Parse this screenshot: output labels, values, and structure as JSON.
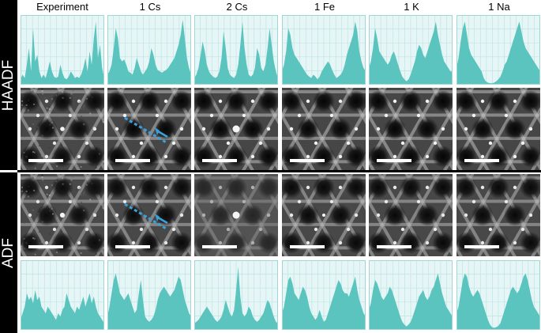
{
  "columns": [
    "Experiment",
    "1 Cs",
    "2 Cs",
    "1 Fe",
    "1 K",
    "1 Na"
  ],
  "row_labels": {
    "top": "HAADF",
    "bottom": "ADF"
  },
  "colors": {
    "profile_fill": "#5bc4be",
    "profile_bg": "#e6f6f6",
    "grid": "#bfe4e4",
    "arrow": "#3aa0dc",
    "scalebar": "#ffffff",
    "image_bg": "#3a3a3a"
  },
  "haadf_profiles": [
    [
      0.08,
      0.15,
      0.1,
      0.3,
      0.55,
      0.2,
      0.85,
      0.35,
      0.45,
      0.2,
      0.1,
      0.15,
      0.1,
      0.22,
      0.35,
      0.2,
      0.12,
      0.1,
      0.12,
      0.3,
      0.18,
      0.1,
      0.08,
      0.12,
      0.2,
      0.15,
      0.1,
      0.12,
      0.1,
      0.15,
      0.25,
      0.4,
      0.2,
      0.5,
      0.3,
      0.7,
      0.95,
      0.4,
      0.6,
      0.25,
      0.1
    ],
    [
      0.15,
      0.2,
      0.3,
      0.55,
      0.85,
      0.7,
      0.4,
      0.35,
      0.38,
      0.3,
      0.2,
      0.18,
      0.15,
      0.25,
      0.4,
      0.3,
      0.2,
      0.15,
      0.2,
      0.25,
      0.35,
      0.55,
      0.45,
      0.3,
      0.22,
      0.2,
      0.18,
      0.2,
      0.22,
      0.25,
      0.3,
      0.35,
      0.4,
      0.5,
      0.6,
      0.75,
      0.98,
      0.7,
      0.4,
      0.25,
      0.15
    ],
    [
      0.1,
      0.15,
      0.25,
      0.45,
      0.65,
      0.5,
      0.3,
      0.2,
      0.15,
      0.12,
      0.1,
      0.12,
      0.2,
      0.4,
      0.8,
      0.55,
      0.25,
      0.15,
      0.12,
      0.1,
      0.15,
      0.3,
      0.6,
      0.95,
      0.55,
      0.3,
      0.15,
      0.12,
      0.15,
      0.25,
      0.55,
      0.45,
      0.25,
      0.2,
      0.3,
      0.55,
      0.85,
      0.6,
      0.35,
      0.2,
      0.1
    ],
    [
      0.2,
      0.3,
      0.5,
      0.85,
      0.75,
      0.55,
      0.45,
      0.4,
      0.35,
      0.3,
      0.25,
      0.2,
      0.15,
      0.12,
      0.1,
      0.15,
      0.12,
      0.08,
      0.12,
      0.2,
      0.25,
      0.3,
      0.35,
      0.3,
      0.22,
      0.15,
      0.1,
      0.12,
      0.15,
      0.2,
      0.3,
      0.45,
      0.55,
      0.65,
      0.75,
      0.95,
      0.8,
      0.5,
      0.35,
      0.25,
      0.2
    ],
    [
      0.25,
      0.35,
      0.55,
      0.85,
      0.7,
      0.5,
      0.45,
      0.4,
      0.35,
      0.3,
      0.35,
      0.45,
      0.5,
      0.4,
      0.3,
      0.2,
      0.12,
      0.08,
      0.05,
      0.08,
      0.15,
      0.25,
      0.35,
      0.5,
      0.6,
      0.55,
      0.45,
      0.4,
      0.5,
      0.6,
      0.7,
      0.8,
      0.95,
      0.75,
      0.6,
      0.45,
      0.35,
      0.3,
      0.25,
      0.2,
      0.2
    ],
    [
      0.25,
      0.4,
      0.65,
      0.85,
      0.95,
      0.75,
      0.55,
      0.45,
      0.4,
      0.35,
      0.3,
      0.25,
      0.2,
      0.1,
      0.05,
      0.03,
      0.02,
      0.02,
      0.03,
      0.05,
      0.08,
      0.12,
      0.2,
      0.3,
      0.35,
      0.45,
      0.55,
      0.65,
      0.75,
      0.85,
      0.95,
      0.8,
      0.65,
      0.55,
      0.5,
      0.45,
      0.4,
      0.35,
      0.3,
      0.25,
      0.2
    ]
  ],
  "adf_profiles": [
    [
      0.15,
      0.25,
      0.35,
      0.55,
      0.45,
      0.5,
      0.4,
      0.6,
      0.45,
      0.5,
      0.35,
      0.3,
      0.25,
      0.35,
      0.3,
      0.25,
      0.2,
      0.15,
      0.25,
      0.2,
      0.3,
      0.35,
      0.55,
      0.45,
      0.35,
      0.3,
      0.25,
      0.35,
      0.3,
      0.4,
      0.5,
      0.35,
      0.45,
      0.55,
      0.4,
      0.5,
      0.35,
      0.25,
      0.2,
      0.15,
      0.1
    ],
    [
      0.2,
      0.35,
      0.55,
      0.75,
      0.85,
      0.7,
      0.55,
      0.5,
      0.45,
      0.5,
      0.55,
      0.45,
      0.35,
      0.25,
      0.3,
      0.55,
      0.75,
      0.45,
      0.2,
      0.15,
      0.12,
      0.15,
      0.2,
      0.3,
      0.45,
      0.55,
      0.6,
      0.65,
      0.6,
      0.55,
      0.5,
      0.55,
      0.6,
      0.7,
      0.8,
      0.75,
      0.6,
      0.45,
      0.35,
      0.25,
      0.2
    ],
    [
      0.1,
      0.12,
      0.15,
      0.2,
      0.25,
      0.3,
      0.35,
      0.3,
      0.25,
      0.2,
      0.15,
      0.12,
      0.15,
      0.2,
      0.3,
      0.45,
      0.35,
      0.25,
      0.2,
      0.3,
      0.6,
      0.95,
      0.5,
      0.25,
      0.2,
      0.25,
      0.35,
      0.3,
      0.2,
      0.15,
      0.12,
      0.15,
      0.2,
      0.25,
      0.35,
      0.45,
      0.4,
      0.3,
      0.2,
      0.12,
      0.1
    ],
    [
      0.25,
      0.35,
      0.55,
      0.75,
      0.8,
      0.7,
      0.55,
      0.5,
      0.45,
      0.55,
      0.65,
      0.6,
      0.5,
      0.35,
      0.25,
      0.2,
      0.15,
      0.2,
      0.3,
      0.2,
      0.12,
      0.15,
      0.25,
      0.35,
      0.45,
      0.55,
      0.65,
      0.75,
      0.7,
      0.6,
      0.55,
      0.55,
      0.5,
      0.6,
      0.7,
      0.8,
      0.6,
      0.45,
      0.35,
      0.25,
      0.2
    ],
    [
      0.3,
      0.4,
      0.6,
      0.75,
      0.7,
      0.6,
      0.5,
      0.45,
      0.5,
      0.55,
      0.65,
      0.6,
      0.5,
      0.4,
      0.3,
      0.2,
      0.12,
      0.08,
      0.05,
      0.08,
      0.12,
      0.2,
      0.3,
      0.4,
      0.5,
      0.55,
      0.6,
      0.5,
      0.45,
      0.5,
      0.6,
      0.65,
      0.75,
      0.85,
      0.7,
      0.55,
      0.45,
      0.35,
      0.3,
      0.25,
      0.2
    ],
    [
      0.25,
      0.35,
      0.55,
      0.75,
      0.85,
      0.8,
      0.65,
      0.55,
      0.5,
      0.55,
      0.6,
      0.55,
      0.45,
      0.35,
      0.25,
      0.15,
      0.08,
      0.04,
      0.03,
      0.04,
      0.06,
      0.1,
      0.2,
      0.3,
      0.4,
      0.5,
      0.6,
      0.65,
      0.6,
      0.55,
      0.6,
      0.7,
      0.8,
      0.85,
      0.75,
      0.6,
      0.45,
      0.35,
      0.3,
      0.25,
      0.2
    ]
  ],
  "haadf_images": [
    {
      "contrast": 0.9,
      "center_spot": 0.5,
      "noise": 0.5,
      "arrow": false
    },
    {
      "contrast": 1.0,
      "center_spot": 0.0,
      "noise": 0.0,
      "arrow": true
    },
    {
      "contrast": 1.0,
      "center_spot": 1.0,
      "noise": 0.0,
      "arrow": false
    },
    {
      "contrast": 1.0,
      "center_spot": 0.0,
      "noise": 0.0,
      "arrow": false
    },
    {
      "contrast": 1.0,
      "center_spot": 0.0,
      "noise": 0.0,
      "arrow": false
    },
    {
      "contrast": 1.0,
      "center_spot": 0.0,
      "noise": 0.0,
      "arrow": false
    }
  ],
  "adf_images": [
    {
      "contrast": 0.85,
      "center_spot": 0.6,
      "noise": 0.5,
      "arrow": false
    },
    {
      "contrast": 0.9,
      "center_spot": 0.0,
      "noise": 0.0,
      "arrow": true
    },
    {
      "contrast": 0.35,
      "center_spot": 1.0,
      "noise": 0.0,
      "arrow": false
    },
    {
      "contrast": 0.9,
      "center_spot": 0.3,
      "noise": 0.0,
      "arrow": false
    },
    {
      "contrast": 0.9,
      "center_spot": 0.0,
      "noise": 0.0,
      "arrow": false
    },
    {
      "contrast": 0.9,
      "center_spot": 0.0,
      "noise": 0.0,
      "arrow": false
    }
  ]
}
